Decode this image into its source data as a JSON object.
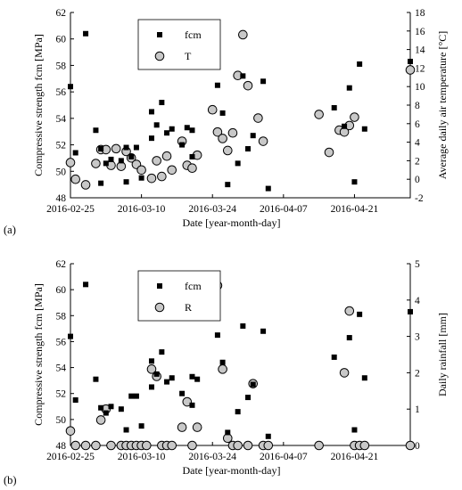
{
  "chart_data": [
    {
      "panel_label": "(a)",
      "type": "scatter",
      "x_is_date": true,
      "xlabel": "Date [year-month-day]",
      "ylabel_left": "Compressive strength fcm [MPa]",
      "ylabel_right": "Average daily air temperature [°C]",
      "x_ticks": [
        "2016-02-25",
        "2016-03-10",
        "2016-03-24",
        "2016-04-07",
        "2016-04-21"
      ],
      "xlim": [
        "2016-02-25",
        "2016-05-02"
      ],
      "ylim_left": [
        48,
        62
      ],
      "yticks_left": [
        48,
        50,
        52,
        54,
        56,
        58,
        60,
        62
      ],
      "ylim_right": [
        -2,
        18
      ],
      "yticks_right": [
        -2,
        0,
        2,
        4,
        6,
        8,
        10,
        12,
        14,
        16,
        18
      ],
      "legend_position": "top-left",
      "series": [
        {
          "name": "fcm",
          "axis": "left",
          "marker": "filled-square",
          "points": [
            [
              "2016-02-25",
              56.4
            ],
            [
              "2016-02-26",
              51.4
            ],
            [
              "2016-02-28",
              60.4
            ],
            [
              "2016-03-01",
              53.1
            ],
            [
              "2016-03-02",
              49.1
            ],
            [
              "2016-03-02",
              51.7
            ],
            [
              "2016-03-03",
              50.6
            ],
            [
              "2016-03-04",
              50.9
            ],
            [
              "2016-03-06",
              50.8
            ],
            [
              "2016-03-07",
              49.2
            ],
            [
              "2016-03-07",
              51.8
            ],
            [
              "2016-03-08",
              51.1
            ],
            [
              "2016-03-09",
              51.8
            ],
            [
              "2016-03-10",
              49.5
            ],
            [
              "2016-03-12",
              54.5
            ],
            [
              "2016-03-12",
              52.5
            ],
            [
              "2016-03-13",
              53.5
            ],
            [
              "2016-03-14",
              55.2
            ],
            [
              "2016-03-15",
              52.9
            ],
            [
              "2016-03-16",
              53.2
            ],
            [
              "2016-03-18",
              52.0
            ],
            [
              "2016-03-19",
              53.3
            ],
            [
              "2016-03-20",
              53.1
            ],
            [
              "2016-03-20",
              51.1
            ],
            [
              "2016-03-25",
              56.5
            ],
            [
              "2016-03-26",
              54.4
            ],
            [
              "2016-03-27",
              49.0
            ],
            [
              "2016-03-29",
              50.6
            ],
            [
              "2016-03-30",
              57.2
            ],
            [
              "2016-03-31",
              51.7
            ],
            [
              "2016-04-01",
              52.7
            ],
            [
              "2016-04-03",
              56.8
            ],
            [
              "2016-04-04",
              48.7
            ],
            [
              "2016-04-17",
              54.8
            ],
            [
              "2016-04-19",
              53.4
            ],
            [
              "2016-04-20",
              56.3
            ],
            [
              "2016-04-21",
              49.2
            ],
            [
              "2016-04-22",
              58.1
            ],
            [
              "2016-04-23",
              53.2
            ],
            [
              "2016-05-02",
              58.3
            ]
          ]
        },
        {
          "name": "T",
          "axis": "right",
          "marker": "open-circle-grey",
          "points": [
            [
              "2016-02-25",
              1.8
            ],
            [
              "2016-02-26",
              0.0
            ],
            [
              "2016-02-28",
              -0.6
            ],
            [
              "2016-03-01",
              1.7
            ],
            [
              "2016-03-02",
              3.2
            ],
            [
              "2016-03-03",
              3.2
            ],
            [
              "2016-03-04",
              1.5
            ],
            [
              "2016-03-05",
              3.3
            ],
            [
              "2016-03-06",
              1.4
            ],
            [
              "2016-03-07",
              3.0
            ],
            [
              "2016-03-08",
              2.3
            ],
            [
              "2016-03-09",
              1.6
            ],
            [
              "2016-03-10",
              1.0
            ],
            [
              "2016-03-12",
              0.1
            ],
            [
              "2016-03-13",
              2.0
            ],
            [
              "2016-03-14",
              0.3
            ],
            [
              "2016-03-15",
              2.5
            ],
            [
              "2016-03-16",
              1.0
            ],
            [
              "2016-03-18",
              4.1
            ],
            [
              "2016-03-19",
              1.5
            ],
            [
              "2016-03-20",
              1.2
            ],
            [
              "2016-03-21",
              2.6
            ],
            [
              "2016-03-24",
              7.5
            ],
            [
              "2016-03-25",
              5.1
            ],
            [
              "2016-03-26",
              4.4
            ],
            [
              "2016-03-27",
              3.1
            ],
            [
              "2016-03-28",
              5.0
            ],
            [
              "2016-03-29",
              11.2
            ],
            [
              "2016-03-30",
              15.6
            ],
            [
              "2016-03-31",
              10.1
            ],
            [
              "2016-04-02",
              6.6
            ],
            [
              "2016-04-03",
              4.1
            ],
            [
              "2016-04-14",
              7.0
            ],
            [
              "2016-04-16",
              2.9
            ],
            [
              "2016-04-18",
              5.3
            ],
            [
              "2016-04-19",
              5.1
            ],
            [
              "2016-04-20",
              5.8
            ],
            [
              "2016-04-21",
              6.7
            ],
            [
              "2016-05-02",
              11.8
            ]
          ]
        }
      ]
    },
    {
      "panel_label": "(b)",
      "type": "scatter",
      "x_is_date": true,
      "xlabel": "Date [year-month-day]",
      "ylabel_left": "Compressive strength fcm [MPa]",
      "ylabel_right": "Daily rainfall [mm]",
      "x_ticks": [
        "2016-02-25",
        "2016-03-10",
        "2016-03-24",
        "2016-04-07",
        "2016-04-21"
      ],
      "xlim": [
        "2016-02-25",
        "2016-05-02"
      ],
      "ylim_left": [
        48,
        62
      ],
      "yticks_left": [
        48,
        50,
        52,
        54,
        56,
        58,
        60,
        62
      ],
      "ylim_right": [
        0,
        5
      ],
      "yticks_right": [
        0,
        1,
        2,
        3,
        4,
        5
      ],
      "legend_position": "top-left",
      "series": [
        {
          "name": "fcm",
          "axis": "left",
          "marker": "filled-square",
          "points": [
            [
              "2016-02-25",
              56.4
            ],
            [
              "2016-02-26",
              51.5
            ],
            [
              "2016-02-28",
              60.4
            ],
            [
              "2016-03-01",
              53.1
            ],
            [
              "2016-03-02",
              50.9
            ],
            [
              "2016-03-03",
              50.5
            ],
            [
              "2016-03-04",
              51.0
            ],
            [
              "2016-03-06",
              50.8
            ],
            [
              "2016-03-07",
              49.2
            ],
            [
              "2016-03-08",
              51.8
            ],
            [
              "2016-03-09",
              51.8
            ],
            [
              "2016-03-10",
              49.5
            ],
            [
              "2016-03-12",
              54.5
            ],
            [
              "2016-03-12",
              52.5
            ],
            [
              "2016-03-13",
              53.5
            ],
            [
              "2016-03-14",
              55.2
            ],
            [
              "2016-03-15",
              52.9
            ],
            [
              "2016-03-16",
              53.2
            ],
            [
              "2016-03-18",
              52.0
            ],
            [
              "2016-03-20",
              53.3
            ],
            [
              "2016-03-21",
              53.1
            ],
            [
              "2016-03-20",
              51.1
            ],
            [
              "2016-03-25",
              56.5
            ],
            [
              "2016-03-26",
              54.4
            ],
            [
              "2016-03-27",
              49.0
            ],
            [
              "2016-03-29",
              50.6
            ],
            [
              "2016-03-30",
              57.2
            ],
            [
              "2016-03-31",
              51.7
            ],
            [
              "2016-04-01",
              52.7
            ],
            [
              "2016-04-03",
              56.8
            ],
            [
              "2016-04-04",
              48.7
            ],
            [
              "2016-04-17",
              54.8
            ],
            [
              "2016-04-20",
              56.3
            ],
            [
              "2016-04-21",
              49.2
            ],
            [
              "2016-04-22",
              58.1
            ],
            [
              "2016-04-23",
              53.2
            ],
            [
              "2016-05-02",
              58.3
            ]
          ]
        },
        {
          "name": "R",
          "axis": "right",
          "marker": "open-circle-grey",
          "points": [
            [
              "2016-02-25",
              0.4
            ],
            [
              "2016-02-26",
              0.0
            ],
            [
              "2016-02-28",
              0.0
            ],
            [
              "2016-03-01",
              0.0
            ],
            [
              "2016-03-02",
              0.7
            ],
            [
              "2016-03-03",
              1.0
            ],
            [
              "2016-03-04",
              0.0
            ],
            [
              "2016-03-06",
              0.0
            ],
            [
              "2016-03-07",
              0.0
            ],
            [
              "2016-03-08",
              0.0
            ],
            [
              "2016-03-09",
              0.0
            ],
            [
              "2016-03-10",
              0.0
            ],
            [
              "2016-03-11",
              0.0
            ],
            [
              "2016-03-12",
              2.1
            ],
            [
              "2016-03-13",
              1.9
            ],
            [
              "2016-03-14",
              0.0
            ],
            [
              "2016-03-15",
              0.0
            ],
            [
              "2016-03-16",
              0.0
            ],
            [
              "2016-03-18",
              0.5
            ],
            [
              "2016-03-19",
              1.2
            ],
            [
              "2016-03-20",
              0.0
            ],
            [
              "2016-03-21",
              0.5
            ],
            [
              "2016-03-25",
              4.4
            ],
            [
              "2016-03-26",
              2.1
            ],
            [
              "2016-03-27",
              0.2
            ],
            [
              "2016-03-28",
              0.0
            ],
            [
              "2016-03-29",
              0.0
            ],
            [
              "2016-03-31",
              0.0
            ],
            [
              "2016-04-01",
              1.7
            ],
            [
              "2016-04-03",
              0.0
            ],
            [
              "2016-04-04",
              0.0
            ],
            [
              "2016-04-14",
              0.0
            ],
            [
              "2016-04-19",
              2.0
            ],
            [
              "2016-04-20",
              3.7
            ],
            [
              "2016-04-21",
              0.0
            ],
            [
              "2016-04-22",
              0.0
            ],
            [
              "2016-04-23",
              0.0
            ],
            [
              "2016-05-02",
              0.0
            ]
          ]
        }
      ]
    }
  ]
}
